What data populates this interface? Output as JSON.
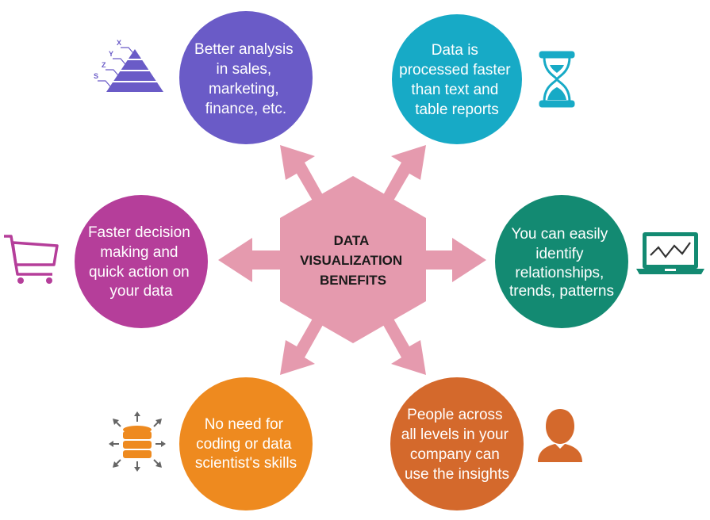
{
  "center": {
    "lines": [
      "DATA",
      "VISUALIZATION",
      "BENEFITS"
    ],
    "color": "#e59aae"
  },
  "benefits": [
    {
      "id": "analysis",
      "lines": [
        "Better analysis",
        "in sales,",
        "marketing,",
        "finance, etc."
      ],
      "color": "#6a5bc7",
      "icon": "pyramid-icon"
    },
    {
      "id": "faster",
      "lines": [
        "Data is",
        "processed faster",
        "than text and",
        "table reports"
      ],
      "color": "#17aac6",
      "icon": "hourglass-icon"
    },
    {
      "id": "patterns",
      "lines": [
        "You can easily",
        "identify",
        "relationships,",
        "trends, patterns"
      ],
      "color": "#138a72",
      "icon": "laptop-chart-icon"
    },
    {
      "id": "insights",
      "lines": [
        "People across",
        "all levels in your",
        "company can",
        "use the insights"
      ],
      "color": "#d4692c",
      "icon": "person-icon"
    },
    {
      "id": "coding",
      "lines": [
        "No need for",
        "coding or data",
        "scientist's skills"
      ],
      "color": "#ee8a1f",
      "icon": "database-icon"
    },
    {
      "id": "decision",
      "lines": [
        "Faster decision",
        "making and",
        "quick action on",
        "your data"
      ],
      "color": "#b53e9a",
      "icon": "cart-icon"
    }
  ],
  "pyramid_letters": [
    "X",
    "Y",
    "Z",
    "S"
  ]
}
